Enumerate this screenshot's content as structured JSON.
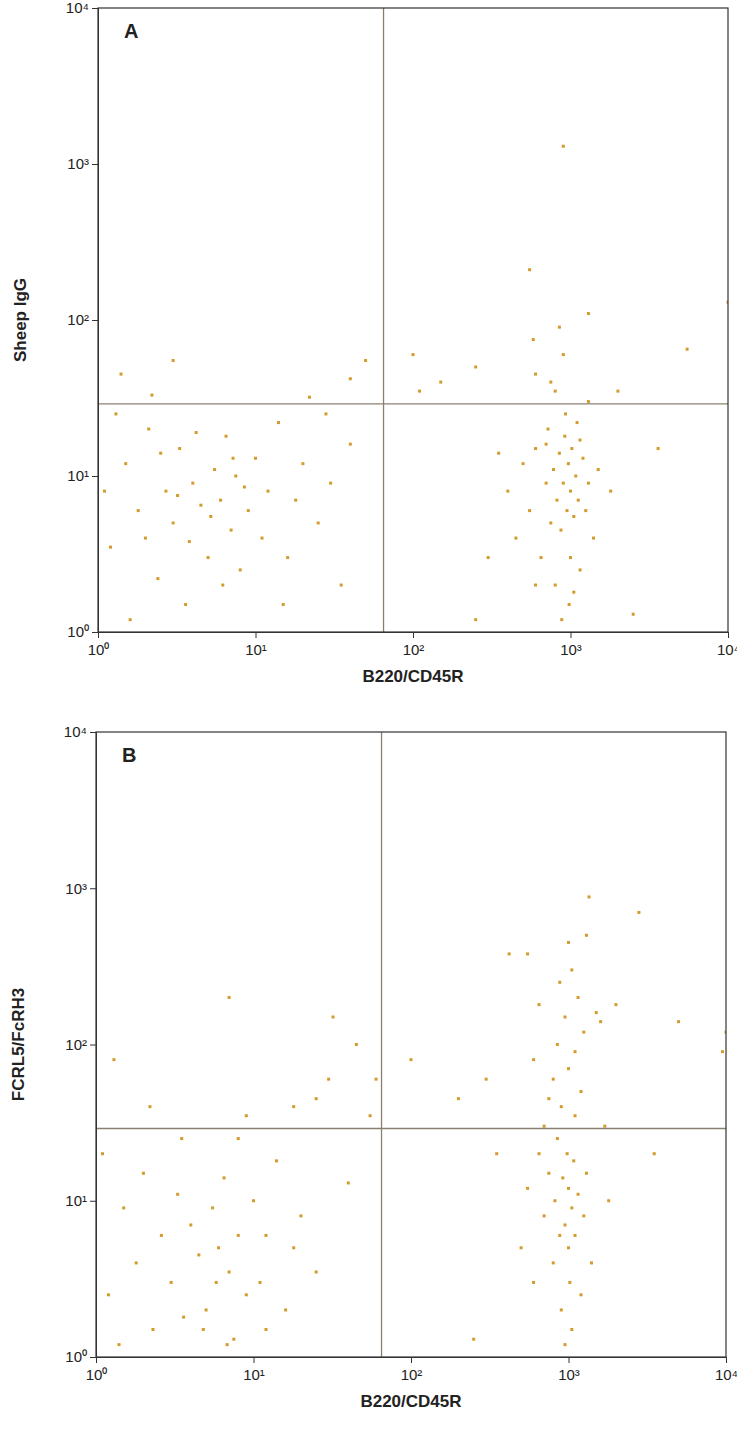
{
  "chart_data": [
    {
      "type": "scatter",
      "title": "A",
      "x_label": "B220/CD45R",
      "y_label": "Sheep IgG",
      "log": true,
      "color": "#d49b2c",
      "marker": "square",
      "xlim": [
        1,
        10000
      ],
      "ylim": [
        1,
        10000
      ],
      "xticks": [
        {
          "value": 1,
          "label": "10⁰"
        },
        {
          "value": 10,
          "label": "10¹"
        },
        {
          "value": 100,
          "label": "10²"
        },
        {
          "value": 1000,
          "label": "10³"
        },
        {
          "value": 10000,
          "label": "10⁴"
        }
      ],
      "yticks": [
        {
          "value": 1,
          "label": "10⁰"
        },
        {
          "value": 10,
          "label": "10¹"
        },
        {
          "value": 100,
          "label": "10²"
        },
        {
          "value": 1000,
          "label": "10³"
        },
        {
          "value": 10000,
          "label": "10⁴"
        }
      ],
      "quadrant": {
        "x": 65,
        "y": 29
      },
      "x": [
        1.2,
        1.5,
        1.8,
        2.1,
        2.4,
        2.7,
        3.0,
        3.3,
        3.6,
        4.0,
        4.5,
        5.0,
        5.5,
        6.0,
        6.5,
        7.0,
        7.5,
        8.0,
        9.0,
        10,
        11,
        12,
        14,
        16,
        18,
        20,
        25,
        30,
        35,
        40,
        1.3,
        1.6,
        2.0,
        2.5,
        3.2,
        3.8,
        4.2,
        5.2,
        6.2,
        7.2,
        8.5,
        1.1,
        1.4,
        2.2,
        3.0,
        22,
        40,
        50,
        15,
        28,
        400,
        450,
        500,
        550,
        600,
        650,
        700,
        720,
        750,
        780,
        800,
        820,
        850,
        870,
        900,
        920,
        950,
        970,
        1000,
        1000,
        1020,
        1050,
        1080,
        1100,
        1120,
        1150,
        1200,
        1250,
        1300,
        1400,
        1500,
        980,
        930,
        880,
        1050,
        600,
        700,
        1150,
        300,
        350,
        250,
        1800,
        2500,
        150,
        250,
        600,
        1300,
        800,
        2000,
        900,
        550,
        1300,
        10000,
        5500,
        850,
        100,
        900,
        580,
        3600,
        110,
        750
      ],
      "values": [
        3.5,
        12,
        6,
        20,
        2.2,
        8,
        5,
        15,
        1.5,
        9,
        6.5,
        3,
        11,
        7,
        18,
        4.5,
        10,
        2.5,
        6,
        13,
        4,
        8,
        22,
        3,
        7,
        12,
        5,
        9,
        2,
        16,
        25,
        1.2,
        4,
        14,
        7.5,
        3.8,
        19,
        5.5,
        2,
        13,
        8.5,
        8,
        45,
        33,
        55,
        32,
        42,
        55,
        1.5,
        25,
        8,
        4,
        12,
        6,
        15,
        3,
        9,
        20,
        5,
        11,
        2,
        7,
        14,
        4.5,
        9,
        18,
        6,
        12,
        8,
        3,
        15,
        5.5,
        10,
        22,
        7,
        2.5,
        13,
        6,
        9,
        4,
        11,
        1.5,
        25,
        1.2,
        1.8,
        2,
        16,
        17,
        3,
        14,
        1.2,
        8,
        1.3,
        40,
        50,
        45,
        30,
        35,
        35,
        1300,
        210,
        110,
        130,
        65,
        90,
        60,
        60,
        75,
        15,
        35,
        40
      ]
    },
    {
      "type": "scatter",
      "title": "B",
      "x_label": "B220/CD45R",
      "y_label": "FCRL5/FcRH3",
      "log": true,
      "color": "#d49b2c",
      "marker": "square",
      "xlim": [
        1,
        10000
      ],
      "ylim": [
        1,
        10000
      ],
      "xticks": [
        {
          "value": 1,
          "label": "10⁰"
        },
        {
          "value": 10,
          "label": "10¹"
        },
        {
          "value": 100,
          "label": "10²"
        },
        {
          "value": 1000,
          "label": "10³"
        },
        {
          "value": 10000,
          "label": "10⁴"
        }
      ],
      "yticks": [
        {
          "value": 1,
          "label": "10⁰"
        },
        {
          "value": 10,
          "label": "10¹"
        },
        {
          "value": 100,
          "label": "10²"
        },
        {
          "value": 1000,
          "label": "10³"
        },
        {
          "value": 10000,
          "label": "10⁴"
        }
      ],
      "quadrant": {
        "x": 65,
        "y": 29
      },
      "x": [
        1.2,
        1.5,
        1.8,
        2.0,
        2.3,
        2.6,
        3.0,
        3.3,
        3.6,
        4.0,
        4.5,
        5.0,
        5.5,
        6.0,
        6.5,
        7.0,
        7.5,
        8.0,
        9.0,
        10,
        11,
        12,
        14,
        16,
        18,
        20,
        25,
        1.1,
        1.4,
        2.2,
        3.5,
        4.8,
        5.8,
        6.8,
        1.3,
        8,
        9,
        18,
        25,
        30,
        32,
        7,
        45,
        55,
        12,
        40,
        60,
        500,
        550,
        600,
        650,
        700,
        750,
        800,
        820,
        850,
        880,
        900,
        920,
        950,
        980,
        1000,
        1000,
        1020,
        1050,
        1080,
        1100,
        1150,
        1200,
        1250,
        1300,
        1400,
        950,
        1050,
        700,
        750,
        800,
        850,
        880,
        900,
        950,
        1000,
        1050,
        1100,
        1150,
        1200,
        1250,
        1300,
        600,
        650,
        1000,
        1100,
        1350,
        550,
        1500,
        1600,
        420,
        350,
        300,
        2800,
        5000,
        10000,
        9500,
        3500,
        2000,
        1700,
        200,
        100,
        250,
        1800
      ],
      "values": [
        2.5,
        9,
        4,
        15,
        1.5,
        6,
        3,
        11,
        1.8,
        7,
        4.5,
        2,
        9,
        5,
        14,
        3.5,
        1.3,
        6,
        2.5,
        10,
        3,
        6,
        18,
        2,
        5,
        8,
        3.5,
        20,
        1.2,
        40,
        25,
        1.5,
        3,
        1.2,
        80,
        25,
        35,
        40,
        45,
        60,
        150,
        200,
        100,
        35,
        1.5,
        13,
        60,
        5,
        12,
        3,
        20,
        8,
        15,
        4,
        10,
        25,
        6,
        2,
        14,
        7,
        20,
        5,
        12,
        3,
        9,
        18,
        6,
        11,
        2.5,
        8,
        15,
        4,
        1.2,
        1.5,
        30,
        45,
        60,
        100,
        250,
        40,
        150,
        70,
        300,
        35,
        200,
        50,
        120,
        500,
        80,
        180,
        450,
        90,
        880,
        380,
        160,
        140,
        380,
        20,
        60,
        700,
        140,
        120,
        90,
        20,
        180,
        30,
        45,
        80,
        1.3,
        10
      ]
    }
  ]
}
